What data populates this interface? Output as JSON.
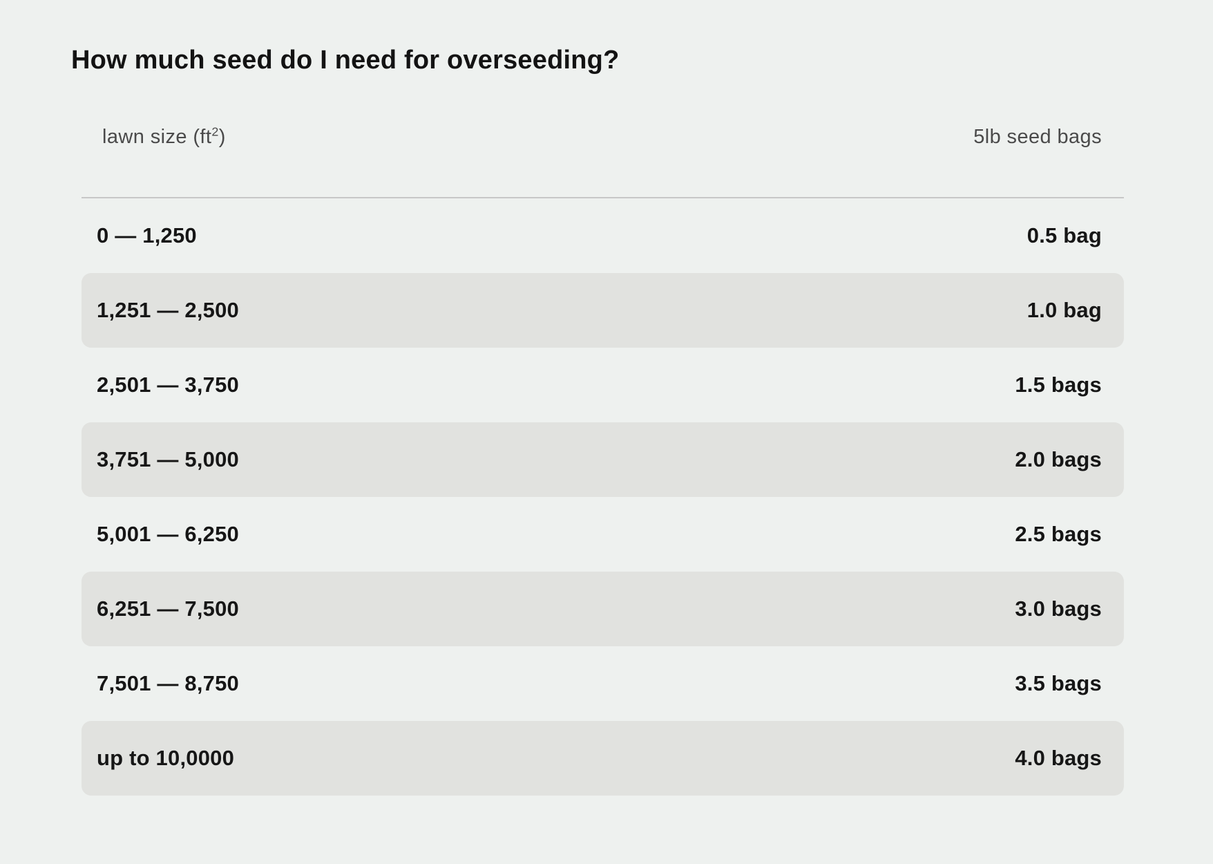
{
  "page": {
    "title": "How much seed do I need for overseeding?"
  },
  "table": {
    "header": {
      "lawn_size_prefix": "lawn size (ft",
      "lawn_size_sup": "2",
      "lawn_size_suffix": ")",
      "seed_bags": "5lb seed bags"
    },
    "rows": [
      {
        "size": "0 — 1,250",
        "bags": "0.5 bag"
      },
      {
        "size": "1,251 — 2,500",
        "bags": "1.0 bag"
      },
      {
        "size": "2,501 — 3,750",
        "bags": "1.5 bags"
      },
      {
        "size": "3,751 — 5,000",
        "bags": "2.0 bags"
      },
      {
        "size": "5,001 — 6,250",
        "bags": "2.5 bags"
      },
      {
        "size": "6,251 — 7,500",
        "bags": "3.0 bags"
      },
      {
        "size": "7,501 — 8,750",
        "bags": "3.5 bags"
      },
      {
        "size": "up to 10,0000",
        "bags": "4.0 bags"
      }
    ]
  },
  "colors": {
    "page_background": "#eef1ef",
    "row_stripe": "#e1e2df",
    "text": "#161616",
    "header_text": "#4a4a4a",
    "divider": "#c7c7c7"
  },
  "chart_data": {
    "type": "table",
    "title": "How much seed do I need for overseeding?",
    "columns": [
      "lawn size (ft²)",
      "5lb seed bags"
    ],
    "rows": [
      [
        "0 — 1,250",
        "0.5 bag"
      ],
      [
        "1,251 — 2,500",
        "1.0 bag"
      ],
      [
        "2,501 — 3,750",
        "1.5 bags"
      ],
      [
        "3,751 — 5,000",
        "2.0 bags"
      ],
      [
        "5,001 — 6,250",
        "2.5 bags"
      ],
      [
        "6,251 — 7,500",
        "3.0 bags"
      ],
      [
        "7,501 — 8,750",
        "3.5 bags"
      ],
      [
        "up to 10,0000",
        "4.0 bags"
      ]
    ],
    "layout": {
      "striped": true,
      "stripe_on": "even_rows",
      "value_alignment": "right",
      "header_style": "light-weight gray, divider line below"
    }
  }
}
